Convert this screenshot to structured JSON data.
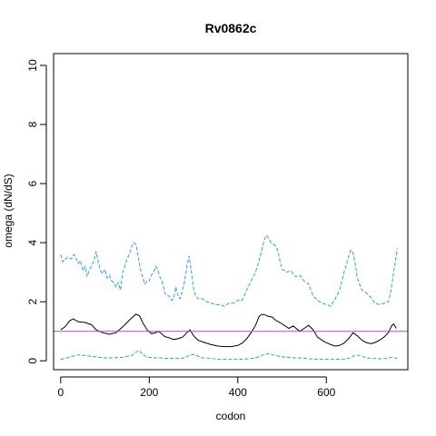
{
  "chart_data": {
    "type": "line",
    "title": "Rv0862c",
    "xlabel": "codon",
    "ylabel": "omega (dN/dS)",
    "xlim": [
      -16,
      784
    ],
    "ylim": [
      -0.3,
      10.4
    ],
    "x_ticks": [
      0,
      200,
      400,
      600
    ],
    "y_ticks": [
      0,
      2,
      4,
      6,
      8,
      10
    ],
    "reference_line": {
      "y": 1,
      "color": "#B84FB6"
    },
    "series": [
      {
        "style": "solid",
        "color": "#000000",
        "x": [
          0,
          10,
          20,
          28,
          40,
          55,
          70,
          80,
          95,
          110,
          125,
          140,
          150,
          160,
          170,
          178,
          185,
          195,
          205,
          215,
          220,
          225,
          235,
          245,
          255,
          265,
          275,
          285,
          292,
          300,
          310,
          325,
          340,
          355,
          370,
          385,
          400,
          410,
          420,
          430,
          440,
          448,
          455,
          462,
          470,
          478,
          485,
          495,
          505,
          515,
          525,
          540,
          550,
          560,
          570,
          580,
          595,
          610,
          620,
          630,
          640,
          650,
          660,
          670,
          680,
          690,
          700,
          710,
          720,
          730,
          740,
          748,
          752,
          758
        ],
        "y": [
          1.05,
          1.15,
          1.35,
          1.42,
          1.32,
          1.3,
          1.22,
          1.05,
          0.95,
          0.9,
          0.95,
          1.15,
          1.3,
          1.45,
          1.58,
          1.52,
          1.3,
          1.05,
          0.92,
          0.95,
          1.0,
          0.95,
          0.82,
          0.78,
          0.72,
          0.75,
          0.8,
          0.95,
          1.05,
          0.85,
          0.7,
          0.62,
          0.55,
          0.5,
          0.48,
          0.48,
          0.52,
          0.6,
          0.75,
          0.95,
          1.2,
          1.5,
          1.58,
          1.55,
          1.5,
          1.48,
          1.38,
          1.3,
          1.2,
          1.1,
          1.18,
          1.0,
          1.1,
          1.2,
          1.05,
          0.8,
          0.65,
          0.55,
          0.5,
          0.52,
          0.6,
          0.75,
          0.95,
          0.85,
          0.7,
          0.62,
          0.58,
          0.62,
          0.7,
          0.8,
          0.95,
          1.2,
          1.25,
          1.1
        ]
      },
      {
        "style": "dashed",
        "color": "#2E9FDF",
        "x": [
          0,
          5,
          15,
          25,
          30,
          40,
          45,
          50,
          55,
          60,
          65,
          70,
          75,
          80,
          85,
          90,
          95,
          100,
          105,
          110,
          115,
          120,
          125,
          130,
          135,
          140,
          145,
          150,
          155,
          160,
          165,
          170,
          175,
          180,
          185,
          190,
          195,
          200,
          205,
          210,
          215,
          220,
          225,
          230,
          235,
          240,
          245,
          250,
          255,
          260,
          265,
          270,
          275,
          280,
          285,
          290,
          295,
          300,
          305,
          310,
          320,
          330,
          340,
          350,
          360,
          370,
          380,
          390,
          400,
          410,
          420,
          430,
          440,
          450,
          455,
          460,
          465,
          470,
          475,
          480,
          485,
          490,
          495,
          500,
          510,
          520,
          530,
          540,
          550,
          560,
          570,
          580,
          590,
          600,
          610,
          620,
          630,
          640,
          650,
          655,
          660,
          665,
          670,
          680,
          690,
          700,
          710,
          720,
          730,
          740,
          745,
          750,
          755,
          760
        ],
        "y": [
          3.6,
          3.35,
          3.5,
          3.45,
          3.6,
          3.3,
          3.4,
          3.05,
          3.2,
          2.85,
          3.1,
          3.2,
          3.4,
          3.7,
          3.35,
          3.05,
          2.95,
          3.1,
          2.8,
          2.9,
          2.7,
          2.65,
          2.5,
          2.65,
          2.4,
          3.0,
          3.2,
          3.45,
          3.6,
          3.85,
          4.0,
          3.95,
          3.55,
          3.1,
          2.85,
          2.6,
          2.7,
          2.7,
          2.9,
          3.0,
          3.2,
          3.05,
          2.8,
          2.65,
          2.3,
          2.2,
          2.2,
          2.05,
          2.1,
          2.5,
          2.2,
          2.1,
          2.4,
          2.7,
          3.2,
          3.55,
          3.05,
          2.45,
          2.2,
          2.1,
          2.1,
          2.0,
          1.95,
          1.9,
          1.9,
          1.85,
          1.95,
          1.95,
          2.05,
          2.05,
          2.4,
          2.7,
          3.0,
          3.5,
          3.8,
          4.1,
          4.25,
          4.15,
          4.0,
          3.95,
          3.9,
          3.75,
          3.4,
          3.1,
          3.0,
          3.05,
          2.85,
          2.9,
          2.7,
          2.6,
          2.2,
          2.05,
          1.95,
          1.9,
          1.85,
          2.1,
          2.4,
          3.0,
          3.5,
          3.75,
          3.65,
          3.3,
          2.8,
          2.4,
          2.3,
          2.15,
          1.95,
          1.9,
          1.95,
          2.0,
          2.3,
          2.8,
          3.3,
          3.8
        ]
      },
      {
        "style": "dashed",
        "color": "#2E9FDF",
        "x": [
          0,
          15,
          25,
          40,
          55,
          70,
          85,
          100,
          120,
          140,
          160,
          170,
          178,
          185,
          195,
          210,
          225,
          240,
          255,
          270,
          280,
          290,
          300,
          320,
          340,
          360,
          380,
          400,
          420,
          440,
          450,
          460,
          470,
          480,
          495,
          510,
          525,
          540,
          555,
          570,
          585,
          600,
          620,
          640,
          655,
          665,
          675,
          690,
          705,
          720,
          735,
          750,
          760
        ],
        "y": [
          0.05,
          0.1,
          0.15,
          0.2,
          0.18,
          0.15,
          0.12,
          0.1,
          0.1,
          0.12,
          0.18,
          0.3,
          0.35,
          0.22,
          0.12,
          0.1,
          0.1,
          0.08,
          0.08,
          0.08,
          0.1,
          0.18,
          0.22,
          0.1,
          0.08,
          0.05,
          0.05,
          0.05,
          0.06,
          0.1,
          0.15,
          0.22,
          0.25,
          0.2,
          0.15,
          0.12,
          0.1,
          0.1,
          0.08,
          0.06,
          0.05,
          0.05,
          0.05,
          0.06,
          0.1,
          0.2,
          0.18,
          0.1,
          0.08,
          0.07,
          0.08,
          0.12,
          0.08
        ]
      }
    ]
  }
}
